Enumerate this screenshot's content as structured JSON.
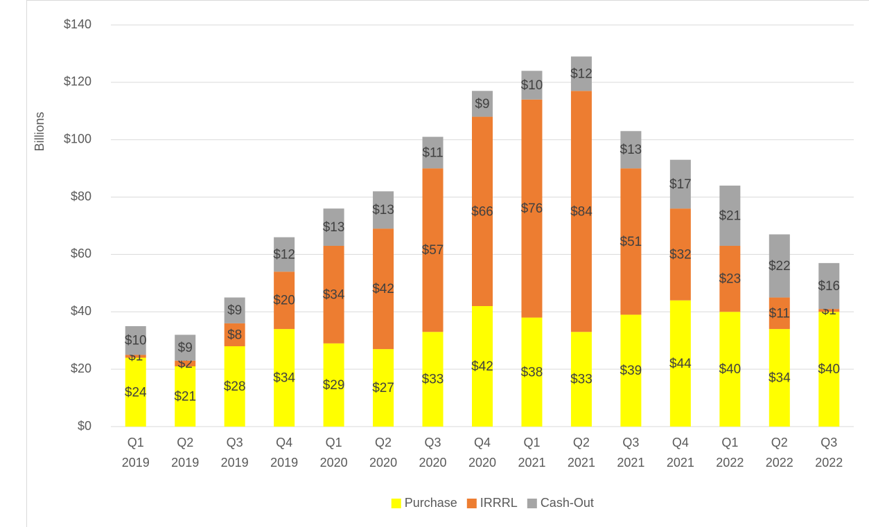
{
  "chart_data": {
    "type": "stacked_bar",
    "y_label": "Billions",
    "categories": [
      [
        "Q1",
        "2019"
      ],
      [
        "Q2",
        "2019"
      ],
      [
        "Q3",
        "2019"
      ],
      [
        "Q4",
        "2019"
      ],
      [
        "Q1",
        "2020"
      ],
      [
        "Q2",
        "2020"
      ],
      [
        "Q3",
        "2020"
      ],
      [
        "Q4",
        "2020"
      ],
      [
        "Q1",
        "2021"
      ],
      [
        "Q2",
        "2021"
      ],
      [
        "Q3",
        "2021"
      ],
      [
        "Q4",
        "2021"
      ],
      [
        "Q1",
        "2022"
      ],
      [
        "Q2",
        "2022"
      ],
      [
        "Q3",
        "2022"
      ]
    ],
    "series": [
      {
        "name": "Purchase",
        "color": "#ffff00",
        "values": [
          24,
          21,
          28,
          34,
          29,
          27,
          33,
          42,
          38,
          33,
          39,
          44,
          40,
          34,
          40
        ],
        "value_labels": [
          "$24",
          "$21",
          "$28",
          "$34",
          "$29",
          "$27",
          "$33",
          "$42",
          "$38",
          "$33",
          "$39",
          "$44",
          "$40",
          "$34",
          "$40"
        ]
      },
      {
        "name": "IRRRL",
        "color": "#ed7d31",
        "values": [
          1,
          2,
          8,
          20,
          34,
          42,
          57,
          66,
          76,
          84,
          51,
          32,
          23,
          11,
          1
        ],
        "value_labels": [
          "$1",
          "$2",
          "$8",
          "$20",
          "$34",
          "$42",
          "$57",
          "$66",
          "$76",
          "$84",
          "$51",
          "$32",
          "$23",
          "$11",
          "$1"
        ]
      },
      {
        "name": "Cash-Out",
        "color": "#a5a5a5",
        "values": [
          10,
          9,
          9,
          12,
          13,
          13,
          11,
          9,
          10,
          12,
          13,
          17,
          21,
          22,
          16
        ],
        "value_labels": [
          "$10",
          "$9",
          "$9",
          "$12",
          "$13",
          "$13",
          "$11",
          "$9",
          "$10",
          "$12",
          "$13",
          "$17",
          "$21",
          "$22",
          "$16"
        ]
      }
    ],
    "ylim": [
      0,
      140
    ],
    "yticks": [
      {
        "value": 0,
        "label": "$0"
      },
      {
        "value": 20,
        "label": "$20"
      },
      {
        "value": 40,
        "label": "$40"
      },
      {
        "value": 60,
        "label": "$60"
      },
      {
        "value": 80,
        "label": "$80"
      },
      {
        "value": 100,
        "label": "$100"
      },
      {
        "value": 120,
        "label": "$120"
      },
      {
        "value": 140,
        "label": "$140"
      }
    ],
    "grid": true,
    "legend": "bottom"
  }
}
